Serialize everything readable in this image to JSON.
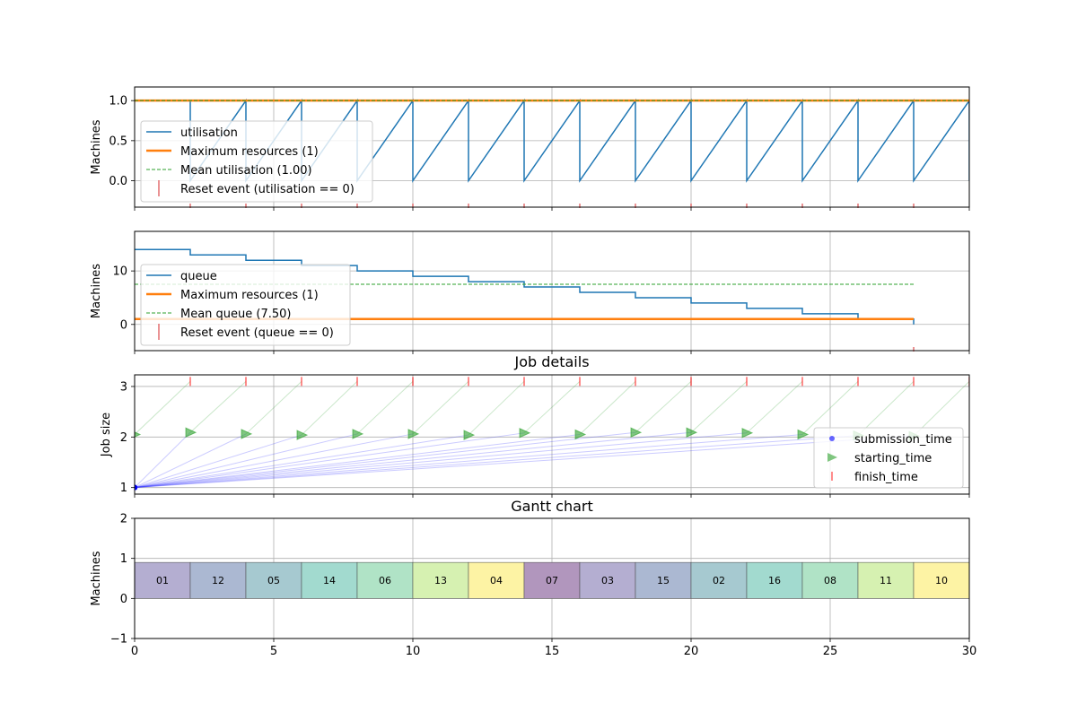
{
  "xaxis": {
    "ticks": [
      0,
      5,
      10,
      15,
      20,
      25,
      30
    ],
    "xlim": [
      0,
      30
    ]
  },
  "chart_data": [
    {
      "type": "line",
      "panel": "utilisation",
      "title": "",
      "ylabel": "Machines",
      "ylim": [
        -0.33,
        1.17
      ],
      "yticks": [
        0.0,
        0.5,
        1.0
      ],
      "ytick_labels": [
        "0.0",
        "0.5",
        "1.0"
      ],
      "grid": true,
      "legend_position": "center-left",
      "series": [
        {
          "name": "utilisation",
          "color": "#1f77b4",
          "step": true,
          "x": [
            0,
            2,
            2,
            4,
            4,
            6,
            6,
            8,
            8,
            10,
            10,
            12,
            12,
            14,
            14,
            16,
            16,
            18,
            18,
            20,
            20,
            22,
            22,
            24,
            24,
            26,
            26,
            28,
            28,
            30,
            30
          ],
          "y": [
            1,
            1,
            0,
            1,
            0,
            1,
            0,
            1,
            0,
            1,
            0,
            1,
            0,
            1,
            0,
            1,
            0,
            1,
            0,
            1,
            0,
            1,
            0,
            1,
            0,
            1,
            0,
            1,
            0,
            1,
            0
          ]
        },
        {
          "name": "Maximum resources (1)",
          "color": "#ff7f0e",
          "y_constant": 1,
          "x_range": [
            0,
            30
          ]
        },
        {
          "name": "Mean utilisation (1.00)",
          "color": "#2ca02c",
          "dashed": true,
          "y_constant": 1.0,
          "x_range": [
            0,
            30
          ]
        },
        {
          "name": "Reset event (utilisation == 0)",
          "color": "#d62728",
          "marker": "|",
          "x": [
            2,
            4,
            6,
            8,
            10,
            12,
            14,
            16,
            18,
            20,
            22,
            24,
            26,
            28
          ]
        }
      ]
    },
    {
      "type": "line",
      "panel": "queue",
      "title": "",
      "ylabel": "Machines",
      "ylim": [
        -4.9,
        17.4
      ],
      "yticks": [
        0,
        10
      ],
      "ytick_labels": [
        "0",
        "10"
      ],
      "grid": true,
      "legend_position": "center-left",
      "series": [
        {
          "name": "queue",
          "color": "#1f77b4",
          "step": true,
          "x": [
            0,
            2,
            4,
            6,
            8,
            10,
            12,
            14,
            16,
            18,
            20,
            22,
            24,
            26,
            28
          ],
          "y": [
            14,
            13,
            12,
            11,
            10,
            9,
            8,
            7,
            6,
            5,
            4,
            3,
            2,
            1,
            0
          ]
        },
        {
          "name": "Maximum resources (1)",
          "color": "#ff7f0e",
          "y_constant": 1,
          "x_range": [
            0,
            28
          ]
        },
        {
          "name": "Mean queue (7.50)",
          "color": "#2ca02c",
          "dashed": true,
          "y_constant": 7.5,
          "x_range": [
            0,
            28
          ]
        },
        {
          "name": "Reset event (queue == 0)",
          "color": "#d62728",
          "marker": "|",
          "x": [
            28
          ]
        }
      ]
    },
    {
      "type": "scatter",
      "panel": "jobs",
      "title": "Job details",
      "ylabel": "Job size",
      "ylim": [
        0.87,
        3.23
      ],
      "yticks": [
        1,
        2,
        3
      ],
      "ytick_labels": [
        "1",
        "2",
        "3"
      ],
      "grid": true,
      "legend_position": "right",
      "jobs": [
        {
          "id": "01",
          "submission": 0,
          "start": 0,
          "finish": 2,
          "size": 1
        },
        {
          "id": "12",
          "submission": 0,
          "start": 2,
          "finish": 4,
          "size": 1
        },
        {
          "id": "05",
          "submission": 0,
          "start": 4,
          "finish": 6,
          "size": 1
        },
        {
          "id": "14",
          "submission": 0,
          "start": 6,
          "finish": 8,
          "size": 1
        },
        {
          "id": "06",
          "submission": 0,
          "start": 8,
          "finish": 10,
          "size": 1
        },
        {
          "id": "13",
          "submission": 0,
          "start": 10,
          "finish": 12,
          "size": 1
        },
        {
          "id": "04",
          "submission": 0,
          "start": 12,
          "finish": 14,
          "size": 1
        },
        {
          "id": "07",
          "submission": 0,
          "start": 14,
          "finish": 16,
          "size": 1
        },
        {
          "id": "03",
          "submission": 0,
          "start": 16,
          "finish": 18,
          "size": 1
        },
        {
          "id": "15",
          "submission": 0,
          "start": 18,
          "finish": 20,
          "size": 1
        },
        {
          "id": "02",
          "submission": 0,
          "start": 20,
          "finish": 22,
          "size": 1
        },
        {
          "id": "16",
          "submission": 0,
          "start": 22,
          "finish": 24,
          "size": 1
        },
        {
          "id": "08",
          "submission": 0,
          "start": 24,
          "finish": 26,
          "size": 1
        },
        {
          "id": "11",
          "submission": 0,
          "start": 26,
          "finish": 28,
          "size": 1
        },
        {
          "id": "10",
          "submission": 0,
          "start": 28,
          "finish": 30,
          "size": 1
        }
      ],
      "series": [
        {
          "name": "submission_time",
          "color": "#0000ff",
          "marker": "o"
        },
        {
          "name": "starting_time",
          "color": "#2ca02c",
          "marker": ">"
        },
        {
          "name": "finish_time",
          "color": "#ff0000",
          "marker": "|"
        }
      ]
    },
    {
      "type": "gantt",
      "panel": "gantt",
      "title": "Gantt chart",
      "ylabel": "Machines",
      "ylim": [
        -1,
        2
      ],
      "yticks": [
        -1,
        0,
        1,
        2
      ],
      "ytick_labels": [
        "−1",
        "0",
        "1",
        "2"
      ],
      "grid": true,
      "bars": [
        {
          "label": "01",
          "start": 0,
          "end": 2,
          "color": "#b4aed1"
        },
        {
          "label": "12",
          "start": 2,
          "end": 4,
          "color": "#abb8d2"
        },
        {
          "label": "05",
          "start": 4,
          "end": 6,
          "color": "#a6c9d0"
        },
        {
          "label": "14",
          "start": 6,
          "end": 8,
          "color": "#a2dacf"
        },
        {
          "label": "06",
          "start": 8,
          "end": 10,
          "color": "#b0e3c6"
        },
        {
          "label": "13",
          "start": 10,
          "end": 12,
          "color": "#d6f1b1"
        },
        {
          "label": "04",
          "start": 12,
          "end": 14,
          "color": "#fdf3a4"
        },
        {
          "label": "07",
          "start": 14,
          "end": 16,
          "color": "#b196bd"
        },
        {
          "label": "03",
          "start": 16,
          "end": 18,
          "color": "#b4aed1"
        },
        {
          "label": "15",
          "start": 18,
          "end": 20,
          "color": "#abb8d2"
        },
        {
          "label": "02",
          "start": 20,
          "end": 22,
          "color": "#a6c9d0"
        },
        {
          "label": "16",
          "start": 22,
          "end": 24,
          "color": "#a2dacf"
        },
        {
          "label": "08",
          "start": 24,
          "end": 26,
          "color": "#b0e3c6"
        },
        {
          "label": "11",
          "start": 26,
          "end": 28,
          "color": "#d6f1b1"
        },
        {
          "label": "10",
          "start": 28,
          "end": 30,
          "color": "#fdf3a4"
        }
      ],
      "bar_y_range": [
        0,
        0.9
      ]
    }
  ]
}
